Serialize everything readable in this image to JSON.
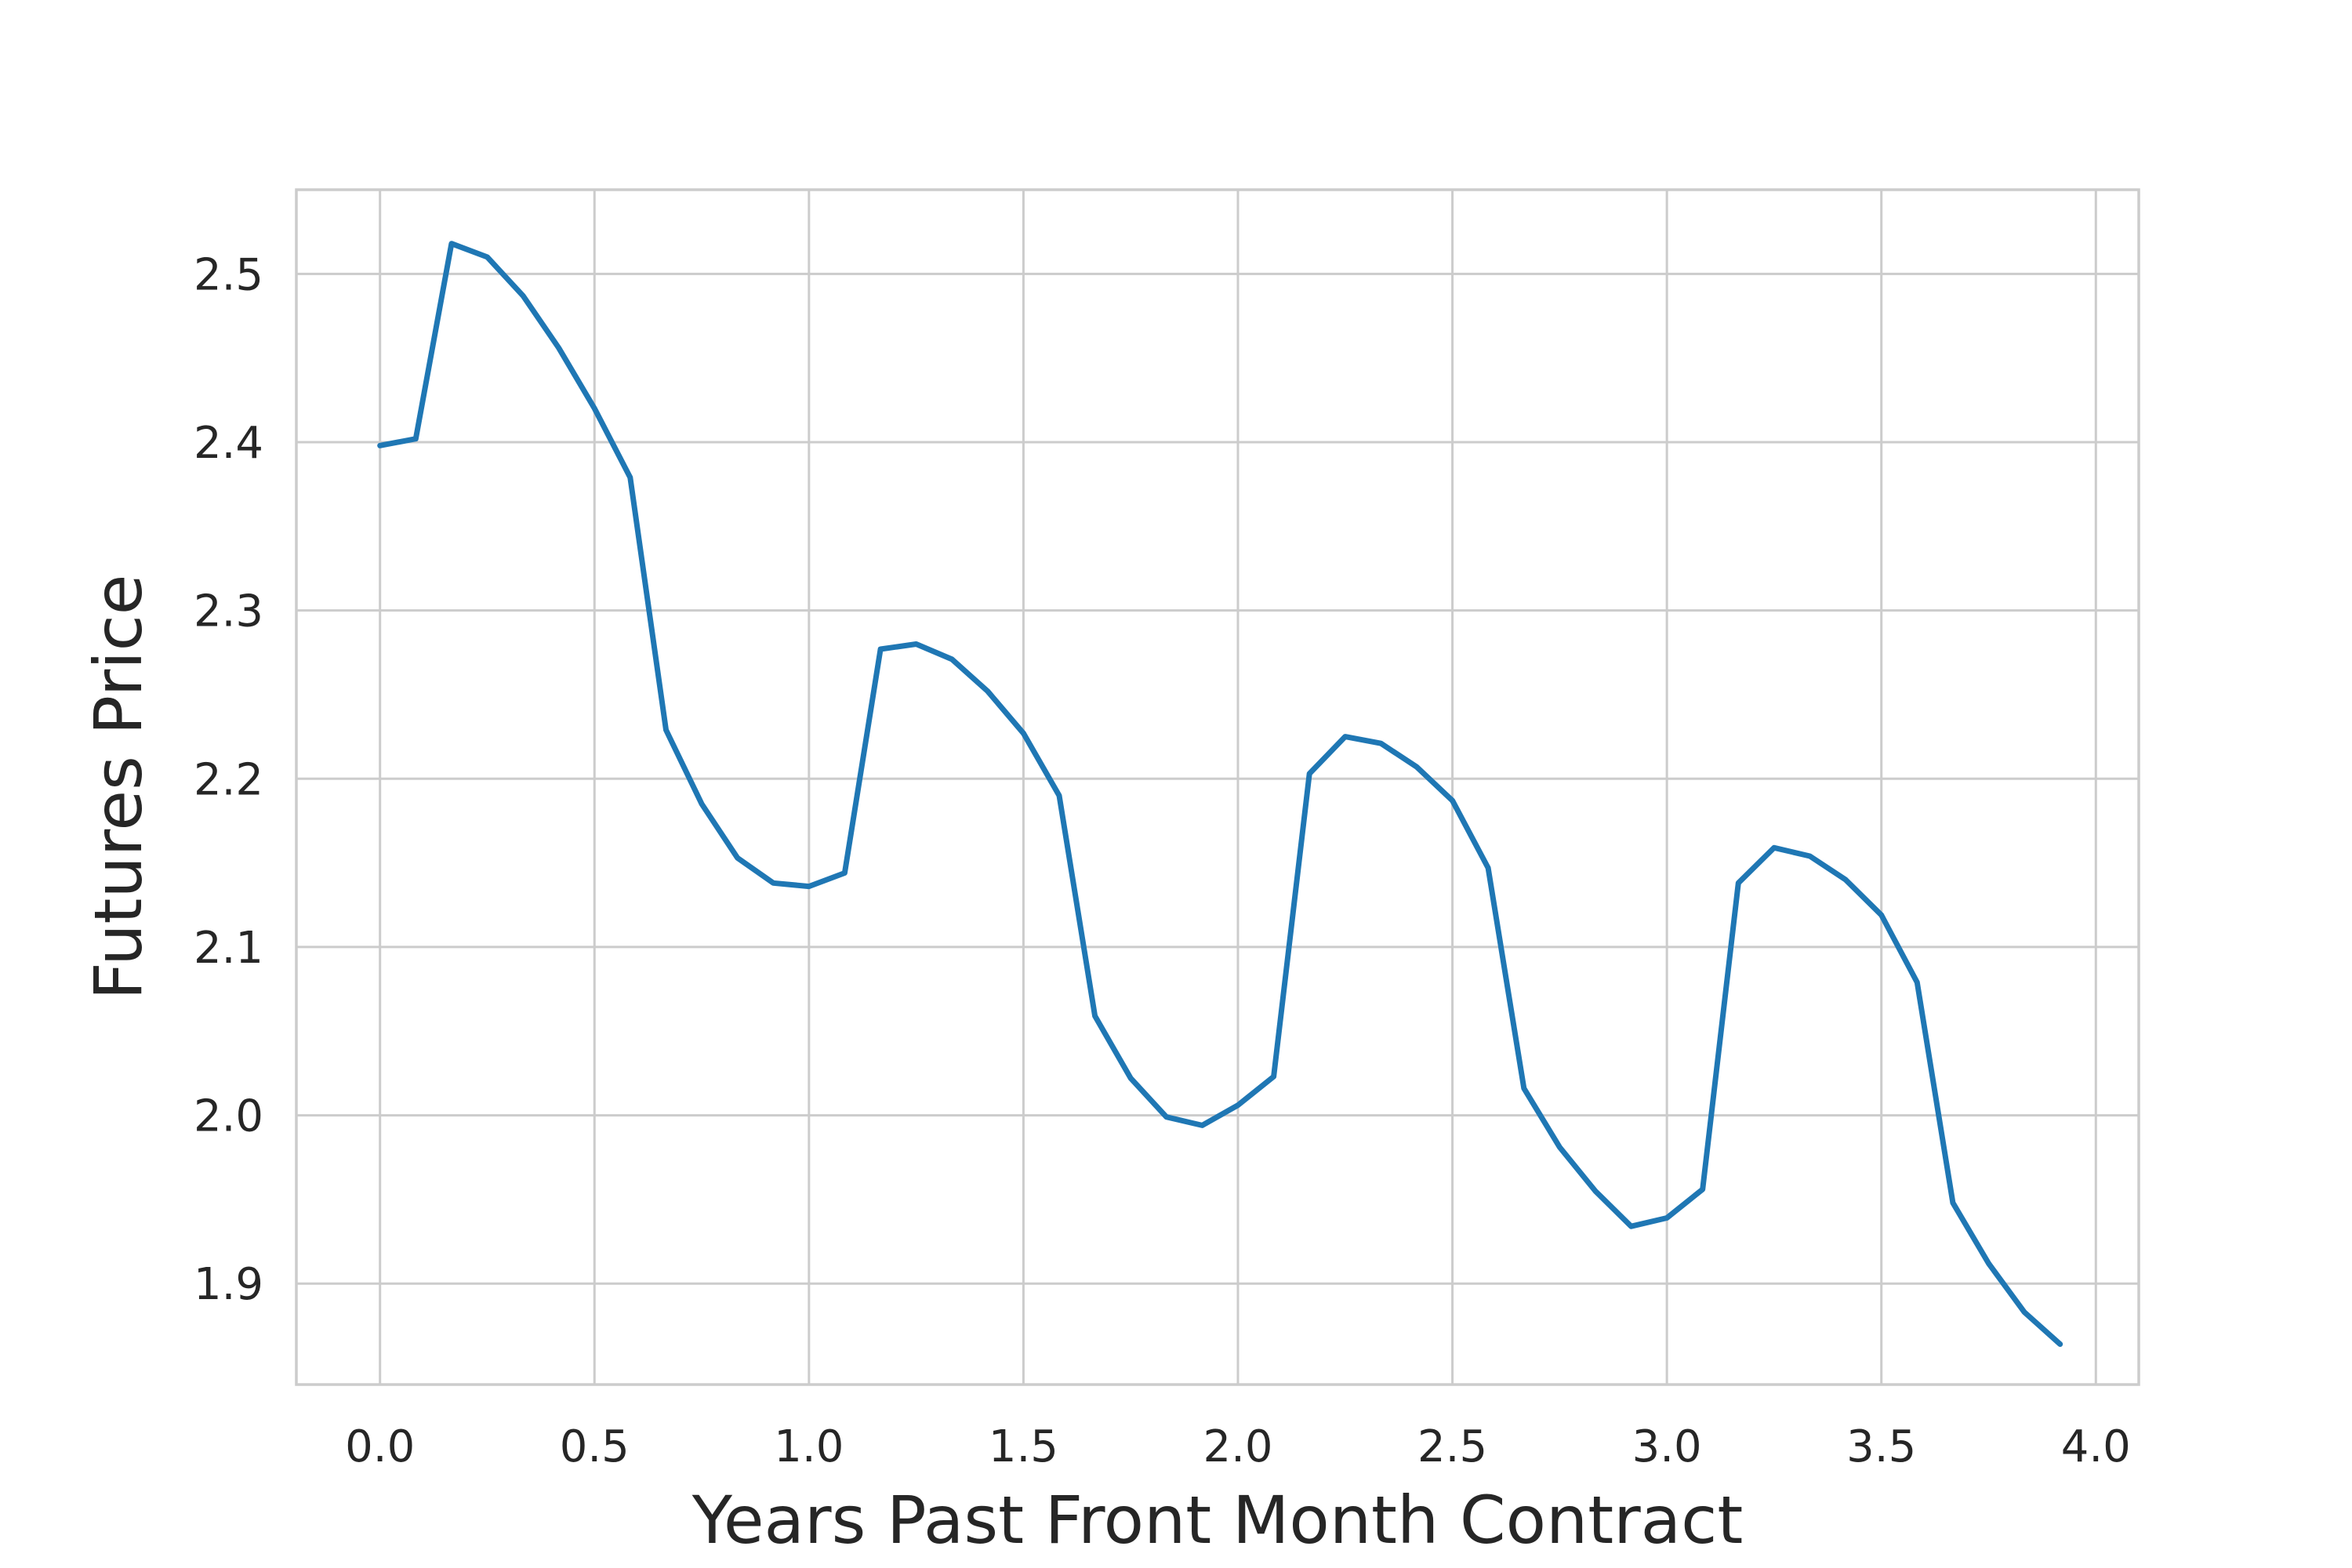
{
  "chart_data": {
    "type": "line",
    "title": "",
    "xlabel": "Years Past Front Month Contract",
    "ylabel": "Futures Price",
    "xlim": [
      -0.195,
      4.1
    ],
    "ylim": [
      1.84,
      2.55
    ],
    "xticks": [
      0.0,
      0.5,
      1.0,
      1.5,
      2.0,
      2.5,
      3.0,
      3.5,
      4.0
    ],
    "xtick_labels": [
      "0.0",
      "0.5",
      "1.0",
      "1.5",
      "2.0",
      "2.5",
      "3.0",
      "3.5",
      "4.0"
    ],
    "yticks": [
      1.9,
      2.0,
      2.1,
      2.2,
      2.3,
      2.4,
      2.5
    ],
    "ytick_labels": [
      "1.9",
      "2.0",
      "2.1",
      "2.2",
      "2.3",
      "2.4",
      "2.5"
    ],
    "grid": true,
    "series": [
      {
        "color": "#1f77b4",
        "x": [
          0.0,
          0.0833,
          0.1667,
          0.25,
          0.3333,
          0.4167,
          0.5,
          0.5833,
          0.6667,
          0.75,
          0.8333,
          0.9167,
          1.0,
          1.0833,
          1.1667,
          1.25,
          1.3333,
          1.4167,
          1.5,
          1.5833,
          1.6667,
          1.75,
          1.8333,
          1.9167,
          2.0,
          2.0833,
          2.1667,
          2.25,
          2.3333,
          2.4167,
          2.5,
          2.5833,
          2.6667,
          2.75,
          2.8333,
          2.9167,
          3.0,
          3.0833,
          3.1667,
          3.25,
          3.3333,
          3.4167,
          3.5,
          3.5833,
          3.6667,
          3.75,
          3.8333,
          3.9167
        ],
        "y": [
          2.398,
          2.402,
          2.518,
          2.51,
          2.487,
          2.456,
          2.42,
          2.379,
          2.229,
          2.185,
          2.153,
          2.138,
          2.136,
          2.144,
          2.277,
          2.28,
          2.271,
          2.252,
          2.227,
          2.19,
          2.059,
          2.022,
          1.999,
          1.994,
          2.006,
          2.023,
          2.203,
          2.225,
          2.221,
          2.207,
          2.187,
          2.147,
          2.016,
          1.981,
          1.955,
          1.934,
          1.939,
          1.956,
          2.138,
          2.159,
          2.154,
          2.14,
          2.119,
          2.079,
          1.948,
          1.912,
          1.883,
          1.864
        ]
      }
    ]
  }
}
